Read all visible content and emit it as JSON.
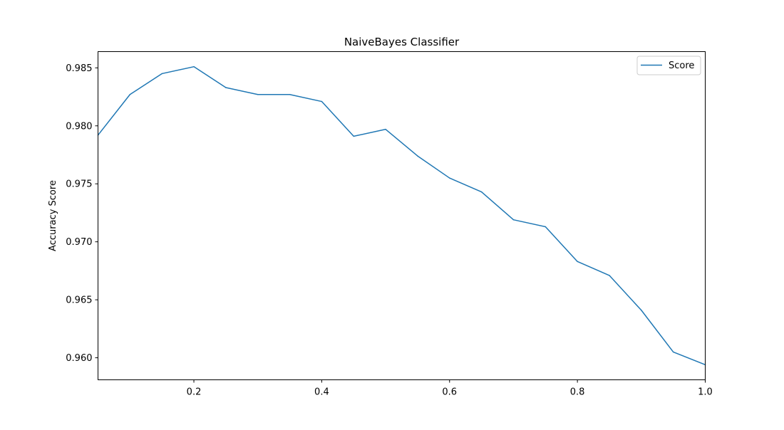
{
  "chart_data": {
    "type": "line",
    "title": "NaiveBayes Classifier",
    "xlabel": "",
    "ylabel": "Accuracy Score",
    "xlim": [
      0.05,
      1.0
    ],
    "ylim": [
      0.9581,
      0.9864
    ],
    "xticks": [
      0.2,
      0.4,
      0.6,
      0.8,
      1.0
    ],
    "xtick_labels": [
      "0.2",
      "0.4",
      "0.6",
      "0.8",
      "1.0"
    ],
    "yticks": [
      0.96,
      0.965,
      0.97,
      0.975,
      0.98,
      0.985
    ],
    "ytick_labels": [
      "0.960",
      "0.965",
      "0.970",
      "0.975",
      "0.980",
      "0.985"
    ],
    "grid": false,
    "legend_position": "top-right",
    "series": [
      {
        "name": "Score",
        "color": "#1f77b4",
        "x": [
          0.05,
          0.1,
          0.15,
          0.2,
          0.25,
          0.3,
          0.35,
          0.4,
          0.45,
          0.5,
          0.55,
          0.6,
          0.65,
          0.7,
          0.75,
          0.8,
          0.85,
          0.9,
          0.95,
          1.0
        ],
        "y": [
          0.9792,
          0.9827,
          0.9845,
          0.9851,
          0.9833,
          0.9827,
          0.9827,
          0.9821,
          0.9791,
          0.9797,
          0.9774,
          0.9755,
          0.9743,
          0.9719,
          0.9713,
          0.9683,
          0.9671,
          0.9641,
          0.9605,
          0.9594
        ]
      }
    ]
  }
}
